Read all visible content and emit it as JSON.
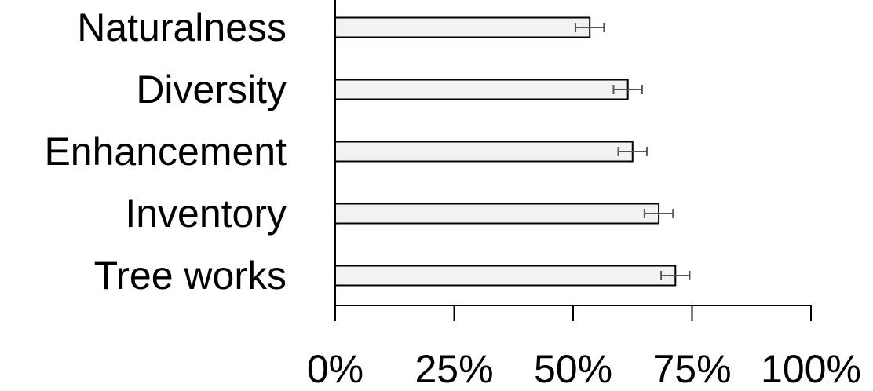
{
  "colors": {
    "bar_fill": "#f2f2f2",
    "bar_stroke": "#000000",
    "axis": "#000000",
    "error_bar": "#555555",
    "text": "#000000"
  },
  "chart_data": {
    "type": "bar",
    "orientation": "horizontal",
    "categories": [
      "Naturalness",
      "Diversity",
      "Enhancement",
      "Inventory",
      "Tree works"
    ],
    "values": [
      53.5,
      61.5,
      62.5,
      68,
      71.5
    ],
    "errors": [
      3,
      3,
      3,
      3,
      3
    ],
    "xlim": [
      0,
      100
    ],
    "xticks": [
      0,
      25,
      50,
      75,
      100
    ],
    "xtick_labels": [
      "0%",
      "25%",
      "50%",
      "75%",
      "100%"
    ],
    "grid": false,
    "legend": "none",
    "title": "",
    "xlabel": "",
    "ylabel": ""
  }
}
